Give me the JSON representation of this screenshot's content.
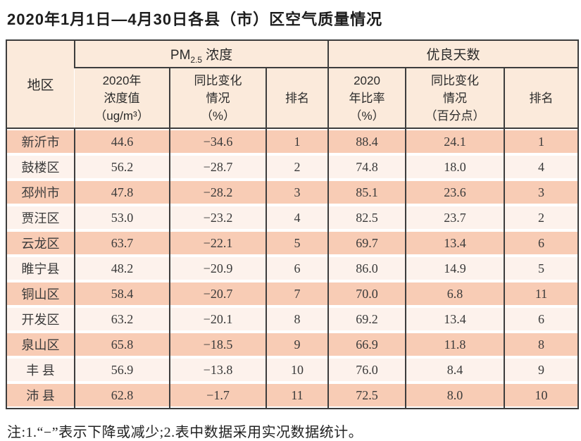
{
  "title": "2020年1月1日—4月30日各县（市）区空气质量情况",
  "table": {
    "region_header": "地区",
    "pm_group": {
      "prefix": "PM",
      "sub": "2.5",
      "suffix": "浓度"
    },
    "good_group": "优良天数",
    "sub_headers": {
      "pm_value_l1": "2020年",
      "pm_value_l2": "浓度值",
      "pm_value_l3": "（ug/m³）",
      "pm_change_l1": "同比变化",
      "pm_change_l2": "情况",
      "pm_change_l3": "（%）",
      "pm_rank": "排名",
      "good_ratio_l1": "2020",
      "good_ratio_l2": "年比率",
      "good_ratio_l3": "（%）",
      "good_change_l1": "同比变化",
      "good_change_l2": "情况",
      "good_change_l3": "（百分点）",
      "good_rank": "排名"
    },
    "rows": [
      {
        "region": "新沂市",
        "pm_value": "44.6",
        "pm_change": "−34.6",
        "pm_rank": "1",
        "good_ratio": "88.4",
        "good_change": "24.1",
        "good_rank": "1"
      },
      {
        "region": "鼓楼区",
        "pm_value": "56.2",
        "pm_change": "−28.7",
        "pm_rank": "2",
        "good_ratio": "74.8",
        "good_change": "18.0",
        "good_rank": "4"
      },
      {
        "region": "邳州市",
        "pm_value": "47.8",
        "pm_change": "−28.2",
        "pm_rank": "3",
        "good_ratio": "85.1",
        "good_change": "23.6",
        "good_rank": "3"
      },
      {
        "region": "贾汪区",
        "pm_value": "53.0",
        "pm_change": "−23.2",
        "pm_rank": "4",
        "good_ratio": "82.5",
        "good_change": "23.7",
        "good_rank": "2"
      },
      {
        "region": "云龙区",
        "pm_value": "63.7",
        "pm_change": "−22.1",
        "pm_rank": "5",
        "good_ratio": "69.7",
        "good_change": "13.4",
        "good_rank": "6"
      },
      {
        "region": "睢宁县",
        "pm_value": "48.2",
        "pm_change": "−20.9",
        "pm_rank": "6",
        "good_ratio": "86.0",
        "good_change": "14.9",
        "good_rank": "5"
      },
      {
        "region": "铜山区",
        "pm_value": "58.4",
        "pm_change": "−20.7",
        "pm_rank": "7",
        "good_ratio": "70.0",
        "good_change": "6.8",
        "good_rank": "11"
      },
      {
        "region": "开发区",
        "pm_value": "63.2",
        "pm_change": "−20.1",
        "pm_rank": "8",
        "good_ratio": "69.2",
        "good_change": "13.4",
        "good_rank": "6"
      },
      {
        "region": "泉山区",
        "pm_value": "65.8",
        "pm_change": "−18.5",
        "pm_rank": "9",
        "good_ratio": "66.9",
        "good_change": "11.8",
        "good_rank": "8"
      },
      {
        "region": "丰 县",
        "pm_value": "56.9",
        "pm_change": "−13.8",
        "pm_rank": "10",
        "good_ratio": "76.0",
        "good_change": "8.4",
        "good_rank": "9"
      },
      {
        "region": "沛 县",
        "pm_value": "62.8",
        "pm_change": "−1.7",
        "pm_rank": "11",
        "good_ratio": "72.5",
        "good_change": "8.0",
        "good_rank": "10"
      }
    ]
  },
  "note": "注:1.“−”表示下降或减少;2.表中数据采用实况数据统计。",
  "colors": {
    "row_peach": "#f8ccb5",
    "row_light": "#fdf2ec",
    "header_bg": "#fbeadb",
    "border": "#3d3d3d",
    "text": "#2f2f2f"
  }
}
